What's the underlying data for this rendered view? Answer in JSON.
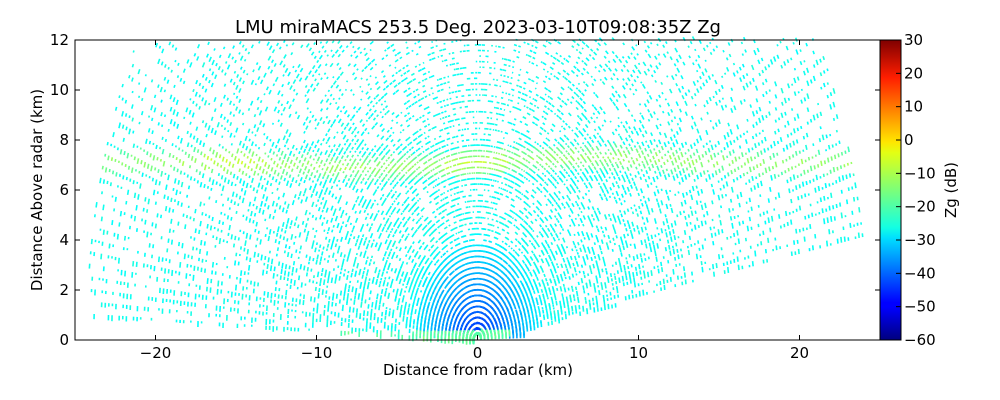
{
  "chart_data": {
    "type": "heatmap",
    "title": "LMU miraMACS 253.5 Deg. 2023-03-10T09:08:35Z  Zg",
    "xlabel": "Distance from radar (km)",
    "ylabel": "Distance Above radar  (km)",
    "xlim": [
      -25,
      25
    ],
    "ylim": [
      0,
      12
    ],
    "x_ticks": [
      -20,
      -10,
      0,
      10,
      20
    ],
    "y_ticks": [
      0,
      2,
      4,
      6,
      8,
      10,
      12
    ],
    "x_tick_labels": [
      "−20",
      "−10",
      "0",
      "10",
      "20"
    ],
    "y_tick_labels": [
      "0",
      "2",
      "4",
      "6",
      "8",
      "10",
      "12"
    ],
    "grid": false,
    "colorbar": {
      "label": "Zg (dB)",
      "range": [
        -60,
        30
      ],
      "colormap": "jet",
      "ticks": [
        30,
        20,
        10,
        0,
        -10,
        -20,
        -30,
        -40,
        -50,
        -60
      ],
      "tick_labels": [
        "30",
        "20",
        "10",
        "0",
        "−10",
        "−20",
        "−30",
        "−40",
        "−50",
        "−60"
      ]
    },
    "scan": {
      "type": "RHI",
      "azimuth_deg": 253.5,
      "max_range_km": 24.5,
      "bright_band_height_km": [
        6.6,
        7.6
      ],
      "bright_band_zg_db": -12,
      "low_level_zg_db": -45,
      "background_zg_db": -25
    }
  }
}
